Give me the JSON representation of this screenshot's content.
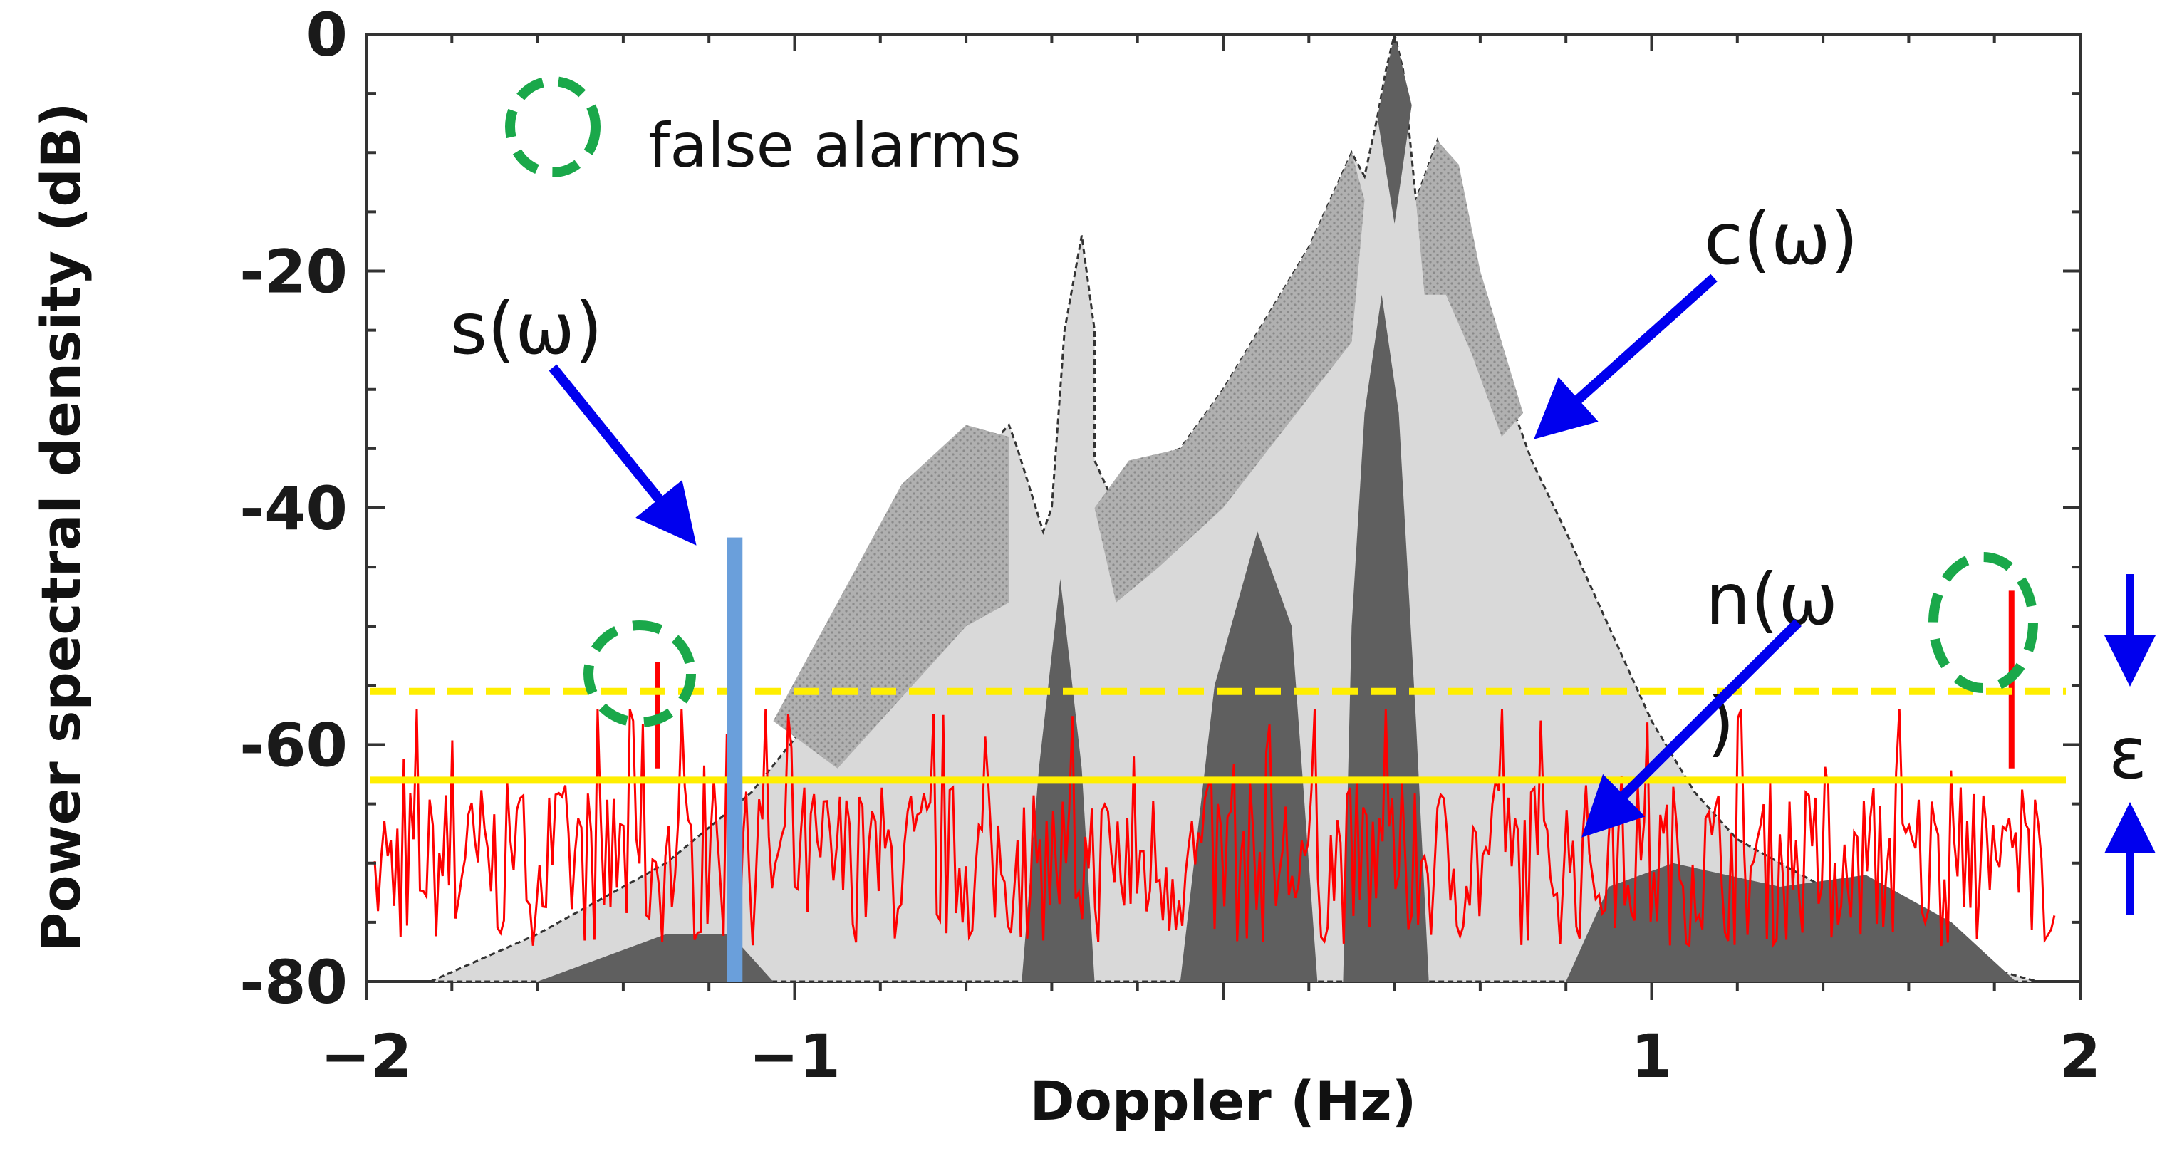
{
  "chart_data": {
    "type": "area",
    "xlabel": "Doppler (Hz)",
    "ylabel": "Power spectral density (dB)",
    "xlim": [
      -2,
      2
    ],
    "ylim": [
      -80,
      0
    ],
    "x_ticks": [
      -2,
      -1,
      1,
      2
    ],
    "x_tick_labels": [
      "−2",
      "−1",
      "1",
      "2"
    ],
    "y_ticks": [
      0,
      -20,
      -40,
      -60,
      -80
    ],
    "y_tick_labels": [
      "0",
      "-20",
      "-40",
      "-60",
      "-80"
    ],
    "clutter_envelope": {
      "x": [
        -1.85,
        -1.6,
        -1.3,
        -1.1,
        -0.9,
        -0.75,
        -0.6,
        -0.5,
        -0.48,
        -0.42,
        -0.4,
        -0.37,
        -0.33,
        -0.3,
        -0.3,
        -0.25,
        -0.18,
        -0.1,
        0.0,
        0.1,
        0.2,
        0.25,
        0.3,
        0.33,
        0.36,
        0.38,
        0.4,
        0.42,
        0.45,
        0.48,
        0.5,
        0.52,
        0.55,
        0.58,
        0.6,
        0.63,
        0.67,
        0.72,
        0.8,
        0.9,
        1.0,
        1.1,
        1.2,
        1.4,
        1.6,
        1.8,
        1.9
      ],
      "y": [
        -80,
        -76,
        -70,
        -64,
        -55,
        -45,
        -37,
        -33,
        -35,
        -42,
        -40,
        -25,
        -17,
        -25,
        -36,
        -40,
        -36,
        -35,
        -30,
        -24,
        -18,
        -14,
        -10,
        -12,
        -7,
        -3,
        0,
        -3,
        -14,
        -11,
        -9,
        -11,
        -16,
        -21,
        -24,
        -27,
        -31,
        -36,
        -42,
        -50,
        -58,
        -64,
        -68,
        -72,
        -76,
        -79,
        -80
      ]
    },
    "noise_floor_db": -70,
    "threshold_solid_db": -63,
    "threshold_dashed_db": -55.5,
    "signal": {
      "x": -1.14,
      "top_db": -42.5
    },
    "false_alarm_spike": {
      "x": 1.84,
      "top_db": -47
    },
    "annotations": {
      "s": "s(ω)",
      "c": "c(ω)",
      "n_line1": "n(ω",
      "n_line2": ")",
      "epsilon": "ε"
    },
    "legend": {
      "false_alarms": "false alarms"
    },
    "colors": {
      "clutter_light": "#d9d9d9",
      "clutter_mid": "#a9a9a9",
      "clutter_dark": "#5f5f5f",
      "noise": "#ff0000",
      "threshold": "#ffee00",
      "signal": "#6a9fdb",
      "arrow": "#0000ee",
      "false_alarm_ring": "#1aa84a"
    }
  }
}
